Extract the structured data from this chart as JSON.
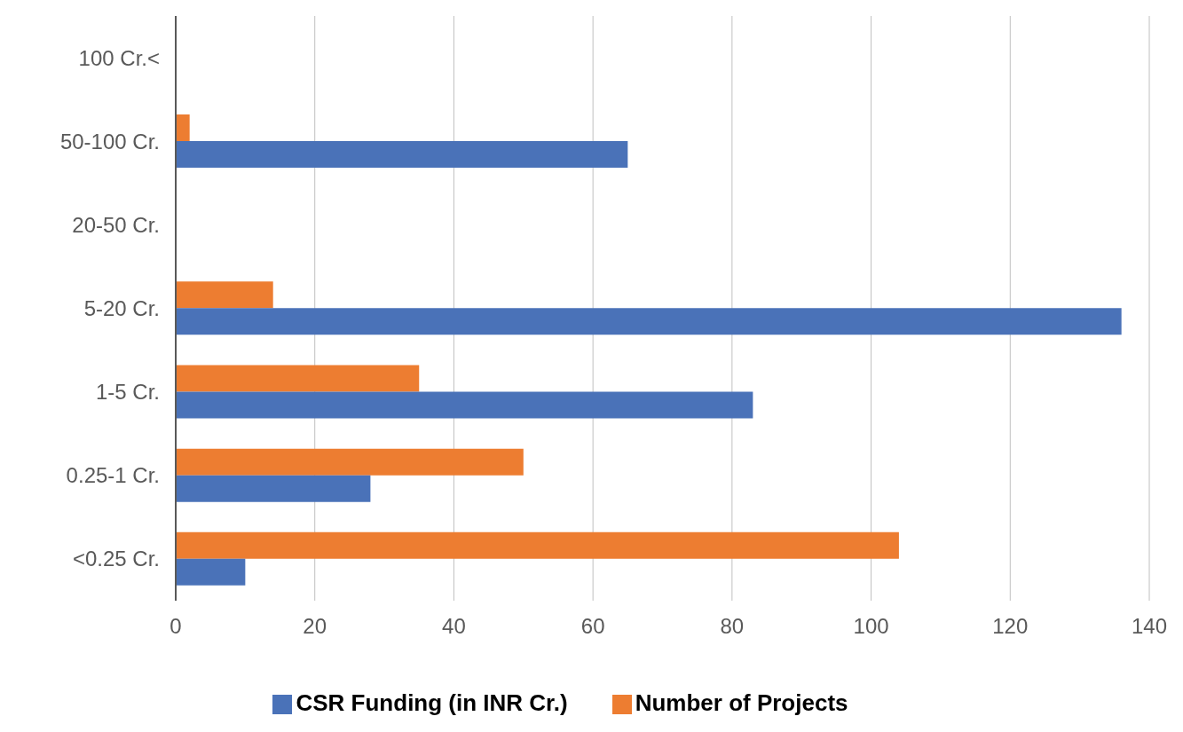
{
  "chart_data": {
    "type": "bar",
    "orientation": "horizontal",
    "categories": [
      "100 Cr.<",
      "50-100 Cr.",
      "20-50 Cr.",
      "5-20 Cr.",
      "1-5 Cr.",
      "0.25-1 Cr.",
      "<0.25 Cr."
    ],
    "series": [
      {
        "name": "Number of Projects",
        "color": "#ed7d31",
        "values": [
          null,
          2,
          null,
          14,
          35,
          50,
          104
        ]
      },
      {
        "name": "CSR Funding (in INR Cr.)",
        "color": "#4a72b8",
        "values": [
          null,
          65,
          null,
          136,
          83,
          28,
          10
        ]
      }
    ],
    "xlim": [
      0,
      140
    ],
    "xticks": [
      0,
      20,
      40,
      60,
      80,
      100,
      120,
      140
    ],
    "grid": "x",
    "legend": "bottom"
  }
}
